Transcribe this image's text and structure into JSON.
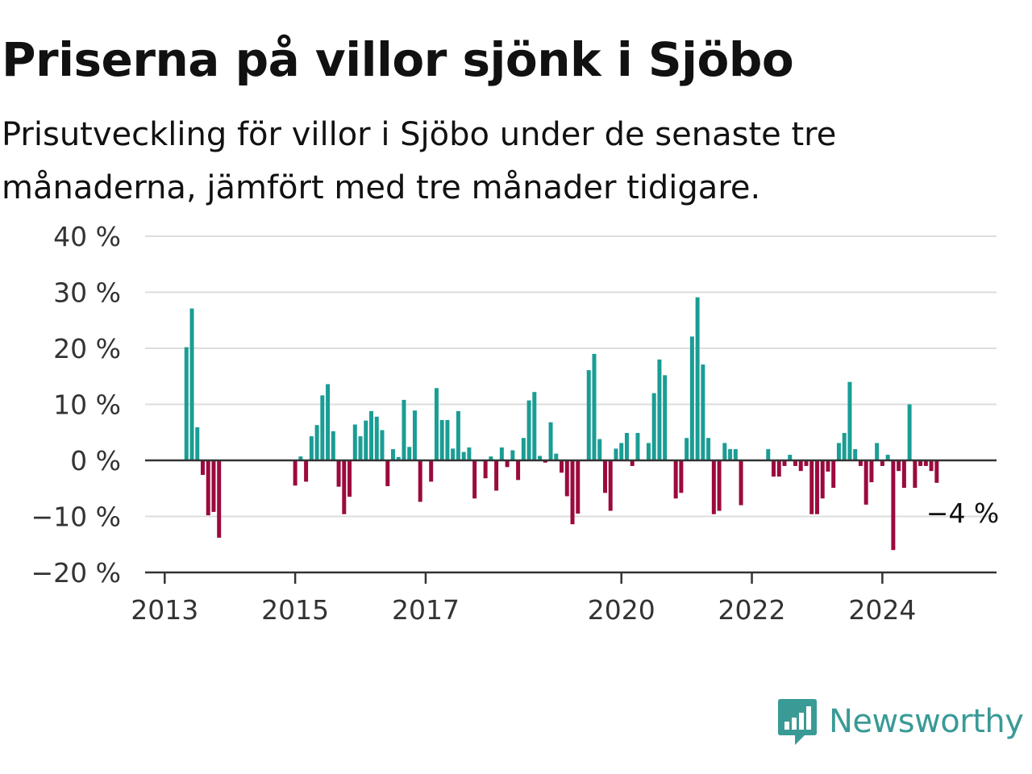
{
  "header": {
    "title": "Priserna på villor sjönk i Sjöbo",
    "subtitle": "Prisutveckling för villor i Sjöbo under de senaste tre månaderna, jämfört med tre månader tidigare."
  },
  "brand": {
    "name": "Newsworthy"
  },
  "colors": {
    "positive": "#1a9d94",
    "negative": "#9b0a3e",
    "grid": "#dddddd",
    "axis": "#333333",
    "brand": "#3a9a96"
  },
  "chart_data": {
    "type": "bar",
    "x_unit": "year (fractional)",
    "ylim": [
      -20,
      40
    ],
    "xlim": [
      2012.7,
      2025.75
    ],
    "y_ticks": [
      40,
      30,
      20,
      10,
      0,
      -10,
      -20
    ],
    "y_tick_labels": [
      "40 %",
      "30 %",
      "20 %",
      "10 %",
      "0 %",
      "−10 %",
      "−20 %"
    ],
    "x_ticks": [
      2013,
      2015,
      2017,
      2020,
      2022,
      2024
    ],
    "x_tick_labels": [
      "2013",
      "2015",
      "2017",
      "2020",
      "2022",
      "2024"
    ],
    "grid": true,
    "annotation": {
      "x": 2025.1667,
      "y": -4,
      "text": "−4 %"
    },
    "points": [
      [
        2013.3333,
        20.2
      ],
      [
        2013.4167,
        27.1
      ],
      [
        2013.5,
        5.9
      ],
      [
        2013.5833,
        -2.6
      ],
      [
        2013.6667,
        -9.8
      ],
      [
        2013.75,
        -9.2
      ],
      [
        2013.8333,
        -13.8
      ],
      [
        2015.0,
        -4.5
      ],
      [
        2015.0833,
        0.7
      ],
      [
        2015.1667,
        -3.8
      ],
      [
        2015.25,
        4.3
      ],
      [
        2015.3333,
        6.3
      ],
      [
        2015.4167,
        11.6
      ],
      [
        2015.5,
        13.6
      ],
      [
        2015.5833,
        5.2
      ],
      [
        2015.6667,
        -4.7
      ],
      [
        2015.75,
        -9.6
      ],
      [
        2015.8333,
        -6.5
      ],
      [
        2015.9167,
        6.4
      ],
      [
        2016.0,
        4.3
      ],
      [
        2016.0833,
        7.1
      ],
      [
        2016.1667,
        8.8
      ],
      [
        2016.25,
        7.8
      ],
      [
        2016.3333,
        5.4
      ],
      [
        2016.4167,
        -4.6
      ],
      [
        2016.5,
        2.0
      ],
      [
        2016.5833,
        0.6
      ],
      [
        2016.6667,
        10.8
      ],
      [
        2016.75,
        2.4
      ],
      [
        2016.8333,
        8.9
      ],
      [
        2016.9167,
        -7.4
      ],
      [
        2017.0833,
        -3.8
      ],
      [
        2017.1667,
        12.9
      ],
      [
        2017.25,
        7.2
      ],
      [
        2017.3333,
        7.2
      ],
      [
        2017.4167,
        2.1
      ],
      [
        2017.5,
        8.8
      ],
      [
        2017.5833,
        1.5
      ],
      [
        2017.6667,
        2.3
      ],
      [
        2017.75,
        -6.8
      ],
      [
        2017.9167,
        -3.2
      ],
      [
        2018.0,
        0.7
      ],
      [
        2018.0833,
        -5.4
      ],
      [
        2018.1667,
        2.3
      ],
      [
        2018.25,
        -1.2
      ],
      [
        2018.3333,
        1.8
      ],
      [
        2018.4167,
        -3.5
      ],
      [
        2018.5,
        4.0
      ],
      [
        2018.5833,
        10.7
      ],
      [
        2018.6667,
        12.2
      ],
      [
        2018.75,
        0.8
      ],
      [
        2018.8333,
        -0.4
      ],
      [
        2018.9167,
        6.8
      ],
      [
        2019.0,
        1.2
      ],
      [
        2019.0833,
        -2.2
      ],
      [
        2019.1667,
        -6.4
      ],
      [
        2019.25,
        -11.4
      ],
      [
        2019.3333,
        -9.5
      ],
      [
        2019.5,
        16.1
      ],
      [
        2019.5833,
        19.0
      ],
      [
        2019.6667,
        3.8
      ],
      [
        2019.75,
        -5.8
      ],
      [
        2019.8333,
        -9.0
      ],
      [
        2019.9167,
        2.1
      ],
      [
        2020.0,
        3.1
      ],
      [
        2020.0833,
        4.9
      ],
      [
        2020.1667,
        -1.0
      ],
      [
        2020.25,
        4.9
      ],
      [
        2020.4167,
        3.1
      ],
      [
        2020.5,
        12.0
      ],
      [
        2020.5833,
        18.0
      ],
      [
        2020.6667,
        15.2
      ],
      [
        2020.8333,
        -6.8
      ],
      [
        2020.9167,
        -5.8
      ],
      [
        2021.0,
        4.0
      ],
      [
        2021.0833,
        22.1
      ],
      [
        2021.1667,
        29.1
      ],
      [
        2021.25,
        17.1
      ],
      [
        2021.3333,
        4.0
      ],
      [
        2021.4167,
        -9.6
      ],
      [
        2021.5,
        -9.0
      ],
      [
        2021.5833,
        3.1
      ],
      [
        2021.6667,
        2.0
      ],
      [
        2021.75,
        2.0
      ],
      [
        2021.8333,
        -8.0
      ],
      [
        2022.25,
        2.0
      ],
      [
        2022.3333,
        -2.9
      ],
      [
        2022.4167,
        -2.9
      ],
      [
        2022.5,
        -1.0
      ],
      [
        2022.5833,
        1.0
      ],
      [
        2022.6667,
        -1.0
      ],
      [
        2022.75,
        -1.9
      ],
      [
        2022.8333,
        -1.0
      ],
      [
        2022.9167,
        -9.6
      ],
      [
        2023.0,
        -9.6
      ],
      [
        2023.0833,
        -6.8
      ],
      [
        2023.1667,
        -2.0
      ],
      [
        2023.25,
        -4.9
      ],
      [
        2023.3333,
        3.1
      ],
      [
        2023.4167,
        4.9
      ],
      [
        2023.5,
        14.0
      ],
      [
        2023.5833,
        2.0
      ],
      [
        2023.6667,
        -1.0
      ],
      [
        2023.75,
        -7.9
      ],
      [
        2023.8333,
        -3.9
      ],
      [
        2023.9167,
        3.1
      ],
      [
        2024.0,
        -1.0
      ],
      [
        2024.0833,
        1.0
      ],
      [
        2024.1667,
        -16.0
      ],
      [
        2024.25,
        -1.9
      ],
      [
        2024.3333,
        -4.9
      ],
      [
        2024.4167,
        10.0
      ],
      [
        2024.5,
        -4.9
      ],
      [
        2024.5833,
        -1.0
      ],
      [
        2024.6667,
        -1.0
      ],
      [
        2024.75,
        -1.9
      ],
      [
        2024.8333,
        -4.0
      ]
    ]
  }
}
